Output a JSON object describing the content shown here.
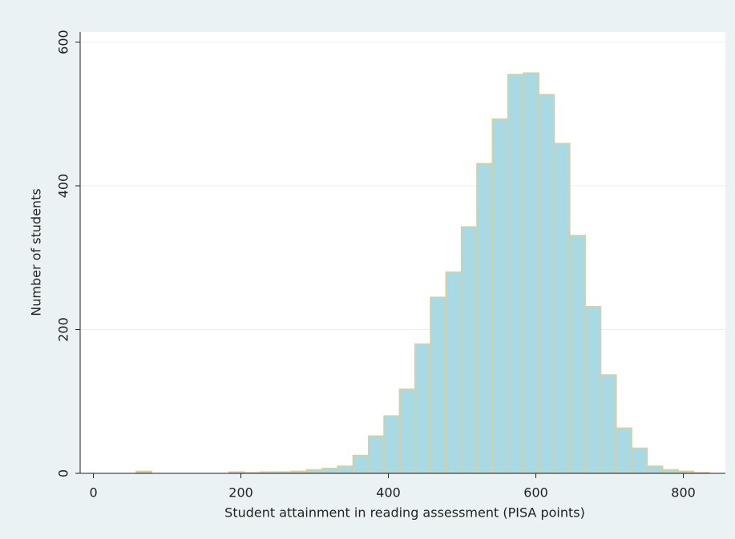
{
  "chart_data": {
    "type": "histogram",
    "xlabel": "Student attainment in reading assessment (PISA points)",
    "ylabel": "Number of students",
    "bins": [
      16,
      37,
      58,
      79,
      100,
      121,
      142,
      163,
      184,
      205,
      226,
      247,
      268,
      289,
      310,
      331,
      352,
      373,
      394,
      415,
      436,
      457,
      478,
      499,
      520,
      541,
      562,
      583,
      604,
      625,
      646,
      667,
      688,
      709,
      730,
      751,
      772,
      793,
      814,
      835
    ],
    "values": [
      0,
      0,
      3,
      0,
      0,
      0,
      0,
      0,
      2,
      1,
      2,
      2,
      3,
      5,
      7,
      10,
      25,
      52,
      80,
      117,
      180,
      245,
      280,
      343,
      431,
      493,
      555,
      557,
      527,
      459,
      331,
      232,
      137,
      63,
      35,
      10,
      5,
      3,
      1
    ],
    "color": "#a9d9e2",
    "edgecolor": "#d9cf9f",
    "xlim": [
      -18,
      857
    ],
    "ylim": [
      0,
      614
    ],
    "xticks": [
      0,
      200,
      400,
      600,
      800
    ],
    "yticks": [
      0,
      200,
      400,
      600
    ],
    "grid": true
  }
}
